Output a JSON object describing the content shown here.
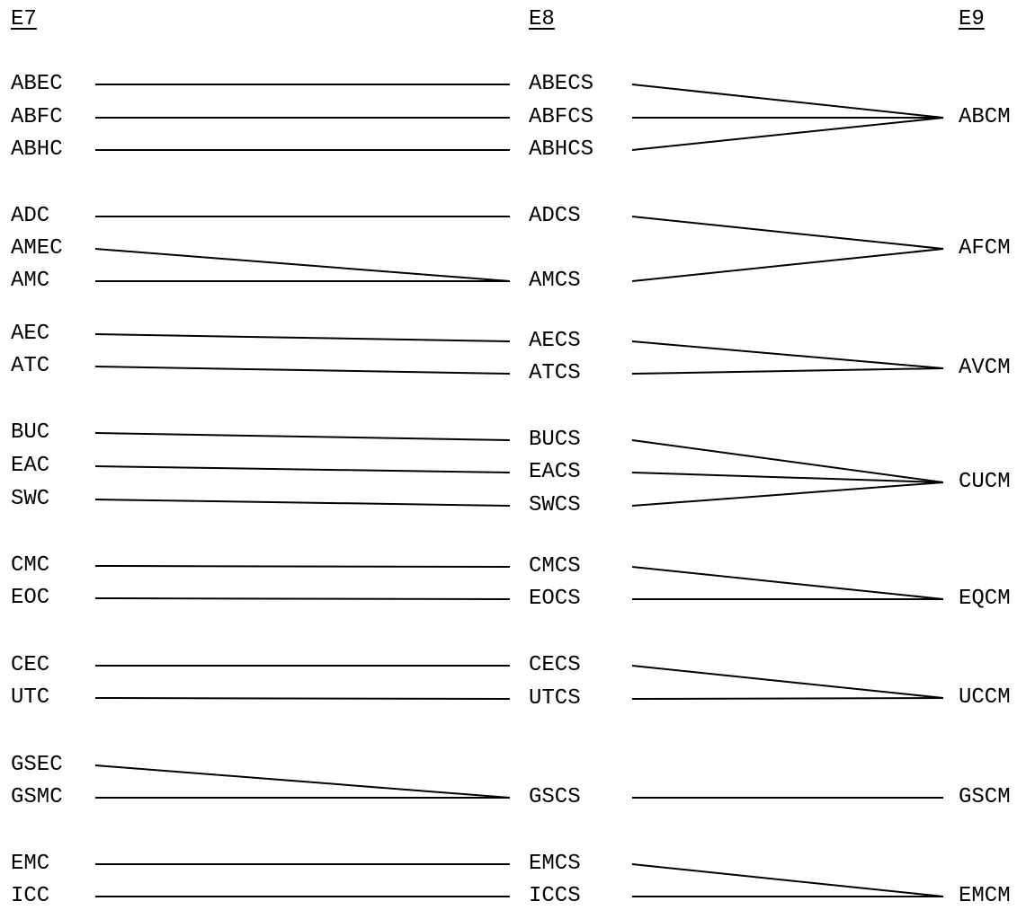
{
  "headers": {
    "e7": "E7",
    "e8": "E8",
    "e9": "E9"
  },
  "e7": [
    "ABEC",
    "ABFC",
    "ABHC",
    "ADC",
    "AMEC",
    "AMC",
    "AEC",
    "ATC",
    "BUC",
    "EAC",
    "SWC",
    "CMC",
    "EOC",
    "CEC",
    "UTC",
    "GSEC",
    "GSMC",
    "EMC",
    "ICC"
  ],
  "e8": [
    "ABECS",
    "ABFCS",
    "ABHCS",
    "ADCS",
    "AMCS",
    "AECS",
    "ATCS",
    "BUCS",
    "EACS",
    "SWCS",
    "CMCS",
    "EOCS",
    "CECS",
    "UTCS",
    "GSCS",
    "EMCS",
    "ICCS"
  ],
  "e9": [
    "ABCM",
    "AFCM",
    "AVCM",
    "CUCM",
    "EQCM",
    "UCCM",
    "GSCM",
    "EMCM"
  ],
  "mappings": {
    "e7_to_e8": [
      [
        "ABEC",
        "ABECS"
      ],
      [
        "ABFC",
        "ABFCS"
      ],
      [
        "ABHC",
        "ABHCS"
      ],
      [
        "ADC",
        "ADCS"
      ],
      [
        "AMEC",
        "AMCS"
      ],
      [
        "AMC",
        "AMCS"
      ],
      [
        "AEC",
        "AECS"
      ],
      [
        "ATC",
        "ATCS"
      ],
      [
        "BUC",
        "BUCS"
      ],
      [
        "EAC",
        "EACS"
      ],
      [
        "SWC",
        "SWCS"
      ],
      [
        "CMC",
        "CMCS"
      ],
      [
        "EOC",
        "EOCS"
      ],
      [
        "CEC",
        "CECS"
      ],
      [
        "UTC",
        "UTCS"
      ],
      [
        "GSEC",
        "GSCS"
      ],
      [
        "GSMC",
        "GSCS"
      ],
      [
        "EMC",
        "EMCS"
      ],
      [
        "ICC",
        "ICCS"
      ]
    ],
    "e8_to_e9": [
      [
        "ABECS",
        "ABCM"
      ],
      [
        "ABFCS",
        "ABCM"
      ],
      [
        "ABHCS",
        "ABCM"
      ],
      [
        "ADCS",
        "AFCM"
      ],
      [
        "AMCS",
        "AFCM"
      ],
      [
        "AECS",
        "AVCM"
      ],
      [
        "ATCS",
        "AVCM"
      ],
      [
        "BUCS",
        "CUCM"
      ],
      [
        "EACS",
        "CUCM"
      ],
      [
        "SWCS",
        "CUCM"
      ],
      [
        "CMCS",
        "EQCM"
      ],
      [
        "EOCS",
        "EQCM"
      ],
      [
        "CECS",
        "UCCM"
      ],
      [
        "UTCS",
        "UCCM"
      ],
      [
        "GSCS",
        "GSCM"
      ],
      [
        "EMCS",
        "EMCM"
      ],
      [
        "ICCS",
        "EMCM"
      ]
    ]
  },
  "line_color": "#000000"
}
